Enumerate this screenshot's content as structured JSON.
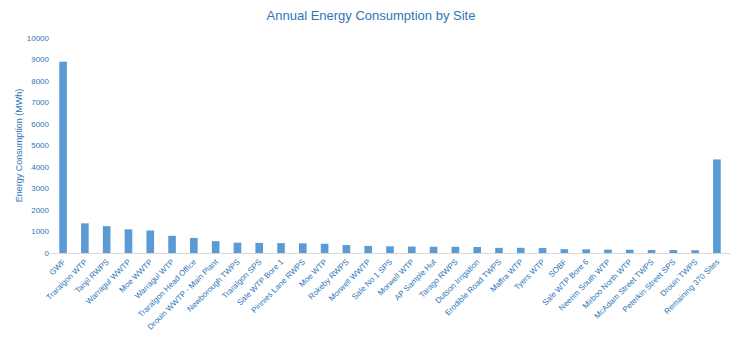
{
  "chart_data": {
    "type": "bar",
    "title": "Annual Energy Consumption by Site",
    "y_label": "Energy Consumption (MWh)",
    "categories": [
      "GWF",
      "Traralgon WTP",
      "Tanjil RWPS",
      "Warragul WWTP",
      "Moe WWTP",
      "Warragul WTP",
      "Traralgon Head Office",
      "Drouin WWTP - Main Plant",
      "Newborough TWPS",
      "Traralgon SPS",
      "Sale WTP Bore 1",
      "Pinnies Lane RWPS",
      "Moe WTP",
      "Rokeby RWPS",
      "Morwell WWTP",
      "Sale No 1 SPS",
      "Morwell WTP",
      "AP Sample Hut",
      "Tarago RWPS",
      "Dutson Irrigation",
      "Erodible Road TWPS",
      "Maffra WTP",
      "Tyers WTP",
      "SOBF",
      "Sale WTP Bore 6",
      "Neerim South WTP",
      "Mirboo North WTP",
      "McAdam Street TWPS",
      "Peterkin Street SPS",
      "Drouin TWPS",
      "Remaining 370 Sites"
    ],
    "values": [
      8900,
      1380,
      1250,
      1100,
      1050,
      800,
      700,
      550,
      480,
      470,
      460,
      450,
      430,
      370,
      330,
      310,
      300,
      290,
      290,
      280,
      240,
      240,
      230,
      180,
      170,
      160,
      150,
      140,
      140,
      130,
      4350
    ],
    "color": "#5b9bd5",
    "ylim": [
      0,
      10000
    ],
    "yticks": [
      0,
      1000,
      2000,
      3000,
      4000,
      5000,
      6000,
      7000,
      8000,
      9000,
      10000
    ],
    "grid": false
  }
}
